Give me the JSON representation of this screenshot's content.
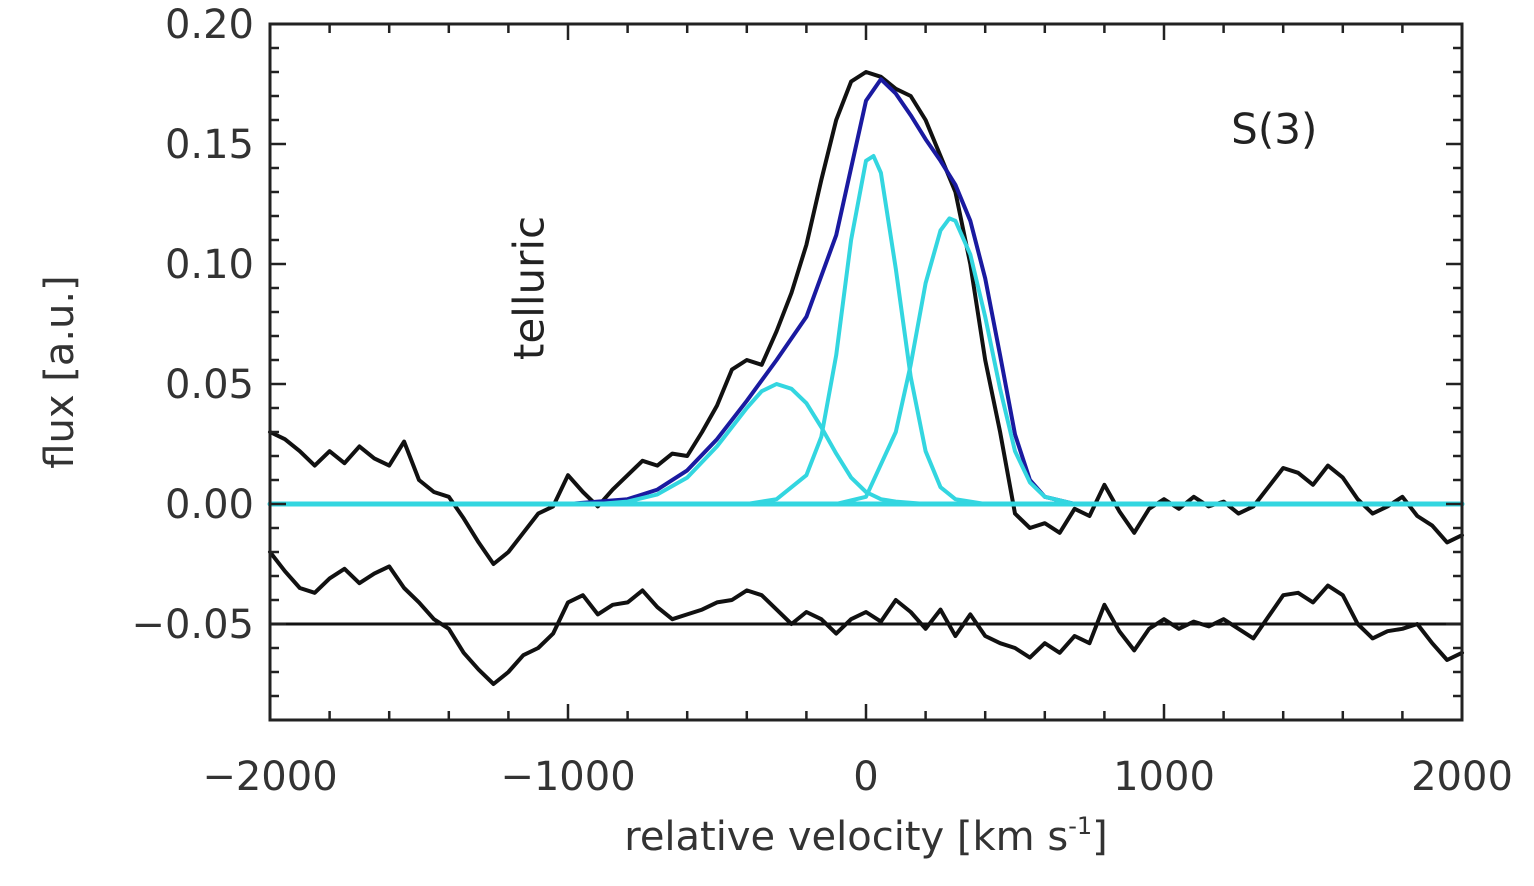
{
  "chart_data": {
    "type": "line",
    "xlabel": "relative velocity [km s",
    "xlabel_sup": "-1",
    "xlabel_end": "]",
    "ylabel": "flux [a.u.]",
    "xlim": [
      -2000,
      2000
    ],
    "ylim": [
      -0.09,
      0.2
    ],
    "xticks": [
      -2000,
      -1000,
      0,
      1000,
      2000
    ],
    "xtick_labels": [
      "−2000",
      "−1000",
      "0",
      "1000",
      "2000"
    ],
    "yticks": [
      -0.05,
      0.0,
      0.05,
      0.1,
      0.15,
      0.2
    ],
    "ytick_labels": [
      "−0.05",
      "0.00",
      "0.05",
      "0.10",
      "0.15",
      "0.20"
    ],
    "annotations": [
      {
        "text": "telluric",
        "x": -1120,
        "y": 0.09,
        "rotation": -90
      },
      {
        "text": "S(3)",
        "x": 1370,
        "y": 0.155
      }
    ],
    "grid": false,
    "colors": {
      "spectrum": "#111111",
      "total_fit": "#1a1aa0",
      "components": "#33d6e0",
      "reference": "#111111"
    },
    "series": [
      {
        "role": "spectrum",
        "style": "black",
        "x": [
          -2000,
          -1950,
          -1900,
          -1850,
          -1800,
          -1750,
          -1700,
          -1650,
          -1600,
          -1550,
          -1500,
          -1450,
          -1400,
          -1350,
          -1300,
          -1250,
          -1200,
          -1150,
          -1100,
          -1050,
          -1000,
          -950,
          -900,
          -850,
          -800,
          -750,
          -700,
          -650,
          -600,
          -550,
          -500,
          -450,
          -400,
          -350,
          -300,
          -250,
          -200,
          -150,
          -100,
          -50,
          0,
          50,
          100,
          150,
          200,
          250,
          300,
          350,
          400,
          450,
          500,
          550,
          600,
          650,
          700,
          750,
          800,
          850,
          900,
          950,
          1000,
          1050,
          1100,
          1150,
          1200,
          1250,
          1300,
          1350,
          1400,
          1450,
          1500,
          1550,
          1600,
          1650,
          1700,
          1750,
          1800,
          1850,
          1900,
          1950,
          2000
        ],
        "y": [
          0.03,
          0.027,
          0.022,
          0.016,
          0.022,
          0.017,
          0.024,
          0.019,
          0.016,
          0.026,
          0.01,
          0.005,
          0.003,
          -0.006,
          -0.016,
          -0.025,
          -0.02,
          -0.012,
          -0.004,
          -0.001,
          0.012,
          0.005,
          -0.001,
          0.006,
          0.012,
          0.018,
          0.016,
          0.021,
          0.02,
          0.03,
          0.041,
          0.056,
          0.06,
          0.058,
          0.072,
          0.088,
          0.108,
          0.135,
          0.16,
          0.176,
          0.18,
          0.178,
          0.173,
          0.17,
          0.16,
          0.145,
          0.13,
          0.1,
          0.06,
          0.03,
          -0.004,
          -0.01,
          -0.008,
          -0.012,
          -0.002,
          -0.005,
          0.008,
          -0.003,
          -0.012,
          -0.002,
          0.002,
          -0.002,
          0.003,
          -0.001,
          0.001,
          -0.004,
          -0.001,
          0.007,
          0.015,
          0.013,
          0.008,
          0.016,
          0.011,
          0.002,
          -0.004,
          -0.001,
          0.003,
          -0.005,
          -0.009,
          -0.016,
          -0.013
        ]
      },
      {
        "role": "total_fit",
        "style": "blue",
        "x": [
          -2000,
          -1000,
          -800,
          -700,
          -600,
          -500,
          -400,
          -300,
          -200,
          -100,
          0,
          50,
          100,
          150,
          200,
          250,
          300,
          350,
          400,
          450,
          500,
          550,
          600,
          700,
          800,
          1000,
          2000
        ],
        "y": [
          0.0,
          0.0,
          0.002,
          0.006,
          0.014,
          0.027,
          0.043,
          0.06,
          0.078,
          0.112,
          0.168,
          0.177,
          0.171,
          0.162,
          0.152,
          0.143,
          0.133,
          0.118,
          0.094,
          0.062,
          0.029,
          0.01,
          0.003,
          0.0,
          0.0,
          0.0,
          0.0
        ]
      },
      {
        "role": "component",
        "name": "",
        "style": "cyan",
        "x": [
          -2000,
          -900,
          -800,
          -700,
          -600,
          -500,
          -400,
          -350,
          -300,
          -250,
          -200,
          -150,
          -100,
          -50,
          0,
          50,
          100,
          200,
          400,
          2000
        ],
        "y": [
          0.0,
          0.0,
          0.001,
          0.004,
          0.011,
          0.024,
          0.04,
          0.047,
          0.05,
          0.048,
          0.042,
          0.032,
          0.021,
          0.011,
          0.005,
          0.002,
          0.001,
          0.0,
          0.0,
          0.0
        ]
      },
      {
        "role": "component",
        "name": "",
        "style": "cyan",
        "x": [
          -2000,
          -400,
          -300,
          -200,
          -150,
          -100,
          -50,
          0,
          25,
          50,
          100,
          150,
          200,
          250,
          300,
          400,
          2000
        ],
        "y": [
          0.0,
          0.0,
          0.002,
          0.012,
          0.028,
          0.062,
          0.11,
          0.143,
          0.145,
          0.138,
          0.098,
          0.053,
          0.022,
          0.007,
          0.002,
          0.0,
          0.0
        ]
      },
      {
        "role": "component",
        "name": "",
        "style": "cyan",
        "x": [
          -2000,
          -100,
          0,
          100,
          150,
          200,
          250,
          280,
          300,
          350,
          400,
          450,
          500,
          550,
          600,
          700,
          2000
        ],
        "y": [
          0.0,
          0.0,
          0.003,
          0.03,
          0.058,
          0.092,
          0.114,
          0.119,
          0.118,
          0.104,
          0.078,
          0.048,
          0.022,
          0.009,
          0.003,
          0.0,
          0.0
        ]
      },
      {
        "role": "residual",
        "style": "black",
        "x": [
          -2000,
          -1950,
          -1900,
          -1850,
          -1800,
          -1750,
          -1700,
          -1650,
          -1600,
          -1550,
          -1500,
          -1450,
          -1400,
          -1350,
          -1300,
          -1250,
          -1200,
          -1150,
          -1100,
          -1050,
          -1000,
          -950,
          -900,
          -850,
          -800,
          -750,
          -700,
          -650,
          -600,
          -550,
          -500,
          -450,
          -400,
          -350,
          -300,
          -250,
          -200,
          -150,
          -100,
          -50,
          0,
          50,
          100,
          150,
          200,
          250,
          300,
          350,
          400,
          450,
          500,
          550,
          600,
          650,
          700,
          750,
          800,
          850,
          900,
          950,
          1000,
          1050,
          1100,
          1150,
          1200,
          1250,
          1300,
          1350,
          1400,
          1450,
          1500,
          1550,
          1600,
          1650,
          1700,
          1750,
          1800,
          1850,
          1900,
          1950,
          2000
        ],
        "y": [
          -0.02,
          -0.028,
          -0.035,
          -0.037,
          -0.031,
          -0.027,
          -0.033,
          -0.029,
          -0.026,
          -0.035,
          -0.041,
          -0.048,
          -0.052,
          -0.062,
          -0.069,
          -0.075,
          -0.07,
          -0.063,
          -0.06,
          -0.054,
          -0.041,
          -0.038,
          -0.046,
          -0.042,
          -0.041,
          -0.036,
          -0.043,
          -0.048,
          -0.046,
          -0.044,
          -0.041,
          -0.04,
          -0.036,
          -0.038,
          -0.044,
          -0.05,
          -0.045,
          -0.048,
          -0.054,
          -0.048,
          -0.045,
          -0.049,
          -0.04,
          -0.045,
          -0.052,
          -0.044,
          -0.055,
          -0.046,
          -0.055,
          -0.058,
          -0.06,
          -0.064,
          -0.058,
          -0.062,
          -0.055,
          -0.058,
          -0.042,
          -0.053,
          -0.061,
          -0.052,
          -0.048,
          -0.052,
          -0.049,
          -0.051,
          -0.048,
          -0.052,
          -0.056,
          -0.047,
          -0.038,
          -0.037,
          -0.041,
          -0.034,
          -0.038,
          -0.05,
          -0.056,
          -0.053,
          -0.052,
          -0.05,
          -0.058,
          -0.065,
          -0.062
        ]
      },
      {
        "role": "reference",
        "style": "black",
        "x": [
          -2000,
          2000
        ],
        "y": [
          -0.05,
          -0.05
        ]
      },
      {
        "role": "baseline",
        "style": "black",
        "x": [
          -2000,
          2000
        ],
        "y": [
          0.0,
          0.0
        ]
      },
      {
        "role": "baseline",
        "style": "cyan",
        "x": [
          -2000,
          2000
        ],
        "y": [
          0.0,
          0.0
        ]
      }
    ]
  }
}
